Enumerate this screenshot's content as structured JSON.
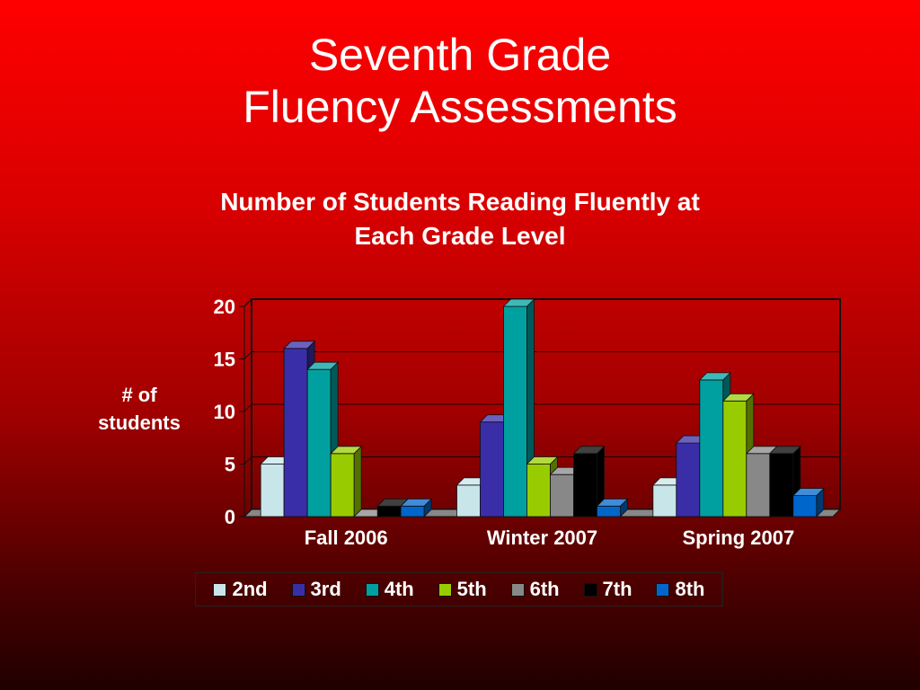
{
  "slide": {
    "title_line1": "Seventh Grade",
    "title_line2": "Fluency Assessments"
  },
  "chart_data": {
    "type": "bar",
    "title_line1": "Number of Students Reading Fluently at",
    "title_line2": "Each Grade Level",
    "xlabel": "",
    "ylabel_line1": "# of",
    "ylabel_line2": "students",
    "categories": [
      "Fall 2006",
      "Winter 2007",
      "Spring 2007"
    ],
    "ylim": [
      0,
      20
    ],
    "yticks": [
      0,
      5,
      10,
      15,
      20
    ],
    "grid": true,
    "legend_position": "bottom",
    "series": [
      {
        "name": "2nd",
        "color": "#c8e6ea",
        "values": [
          5,
          3,
          3
        ]
      },
      {
        "name": "3rd",
        "color": "#3a2ea8",
        "values": [
          16,
          9,
          7
        ]
      },
      {
        "name": "4th",
        "color": "#00a0a0",
        "values": [
          14,
          20,
          13
        ]
      },
      {
        "name": "5th",
        "color": "#99cc00",
        "values": [
          6,
          5,
          11
        ]
      },
      {
        "name": "6th",
        "color": "#888888",
        "values": [
          0,
          4,
          6
        ]
      },
      {
        "name": "7th",
        "color": "#000000",
        "values": [
          1,
          6,
          6
        ]
      },
      {
        "name": "8th",
        "color": "#0066cc",
        "values": [
          1,
          1,
          2
        ]
      }
    ]
  }
}
